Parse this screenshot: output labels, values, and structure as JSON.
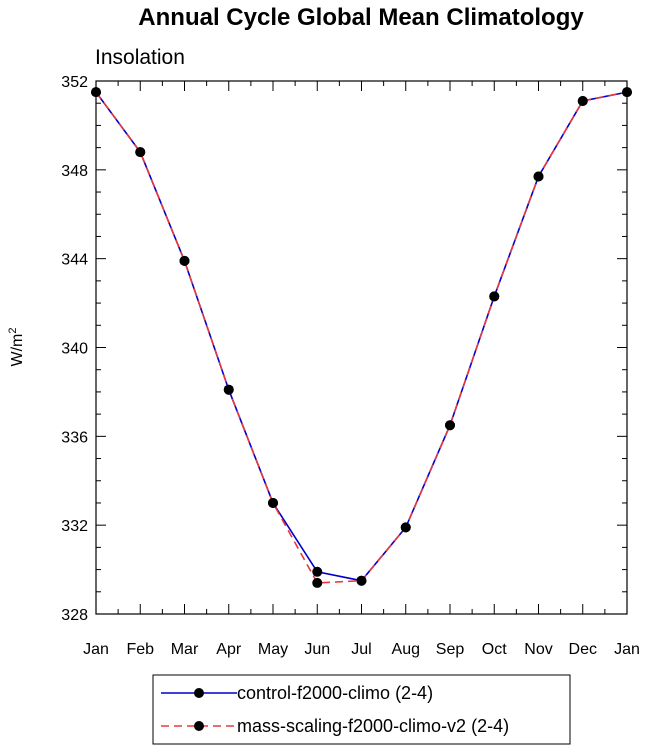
{
  "chart_data": {
    "type": "line",
    "title": "Annual Cycle Global Mean Climatology",
    "subtitle": "Insolation",
    "xlabel": "",
    "ylabel": "W/m",
    "ylabel_superscript": "2",
    "categories": [
      "Jan",
      "Feb",
      "Mar",
      "Apr",
      "May",
      "Jun",
      "Jul",
      "Aug",
      "Sep",
      "Oct",
      "Nov",
      "Dec",
      "Jan"
    ],
    "ylim": [
      328,
      352
    ],
    "yticks": [
      328,
      332,
      336,
      340,
      344,
      348,
      352
    ],
    "series": [
      {
        "name": "control-f2000-climo (2-4)",
        "color": "#0000cc",
        "dash": "solid",
        "marker": "circle",
        "values": [
          351.5,
          348.8,
          343.9,
          338.1,
          333.0,
          329.9,
          329.5,
          331.9,
          336.5,
          342.3,
          347.7,
          351.1,
          351.5
        ]
      },
      {
        "name": "mass-scaling-f2000-climo-v2 (2-4)",
        "color": "#e8383b",
        "dash": "dashed",
        "marker": "circle",
        "values": [
          351.5,
          348.8,
          343.9,
          338.1,
          333.0,
          329.4,
          329.5,
          331.9,
          336.5,
          342.3,
          347.7,
          351.1,
          351.5
        ]
      }
    ],
    "grid": false,
    "legend_placement": "bottom"
  }
}
